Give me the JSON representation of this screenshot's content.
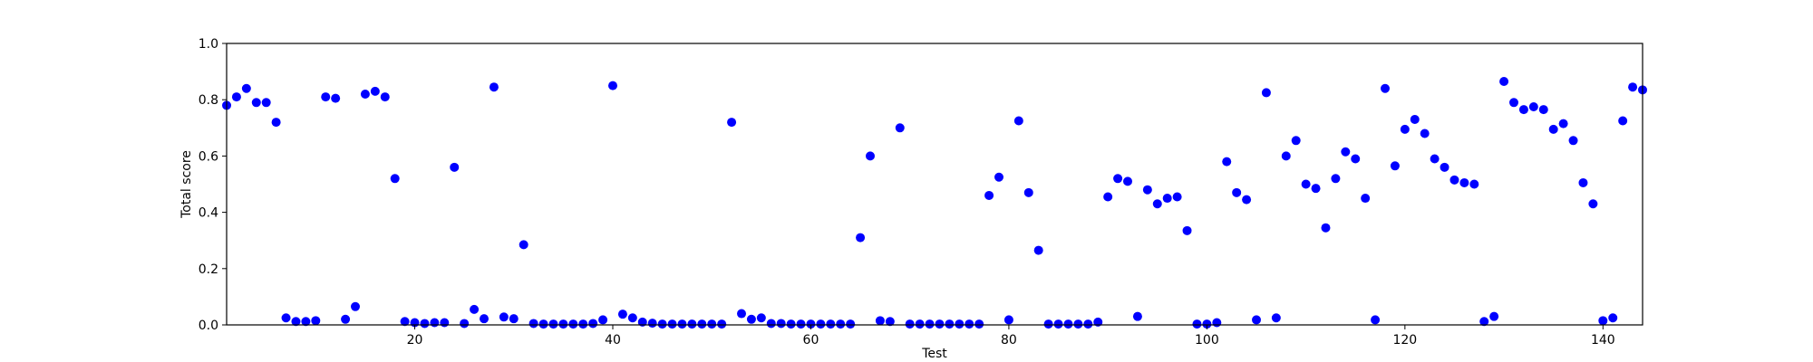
{
  "chart_data": {
    "type": "scatter",
    "title": "",
    "xlabel": "Test",
    "ylabel": "Total score",
    "xlim": [
      1,
      144
    ],
    "ylim": [
      0,
      1.0
    ],
    "xticks": [
      20,
      40,
      60,
      80,
      100,
      120,
      140
    ],
    "xtick_labels": [
      "20",
      "40",
      "60",
      "80",
      "100",
      "120",
      "140"
    ],
    "yticks": [
      0,
      0.2,
      0.4,
      0.6,
      0.8,
      1.0
    ],
    "ytick_labels": [
      "0.0",
      "0.2",
      "0.4",
      "0.6",
      "0.8",
      "1.0"
    ],
    "grid": false,
    "marker_color": "#0000ff",
    "series": [
      {
        "points": [
          [
            1,
            0.78
          ],
          [
            2,
            0.81
          ],
          [
            3,
            0.84
          ],
          [
            4,
            0.79
          ],
          [
            5,
            0.79
          ],
          [
            6,
            0.72
          ],
          [
            7,
            0.025
          ],
          [
            8,
            0.012
          ],
          [
            9,
            0.012
          ],
          [
            10,
            0.015
          ],
          [
            11,
            0.81
          ],
          [
            12,
            0.805
          ],
          [
            13,
            0.02
          ],
          [
            14,
            0.065
          ],
          [
            15,
            0.82
          ],
          [
            16,
            0.83
          ],
          [
            17,
            0.81
          ],
          [
            18,
            0.52
          ],
          [
            19,
            0.012
          ],
          [
            20,
            0.008
          ],
          [
            21,
            0.005
          ],
          [
            22,
            0.008
          ],
          [
            23,
            0.008
          ],
          [
            24,
            0.56
          ],
          [
            25,
            0.005
          ],
          [
            26,
            0.055
          ],
          [
            27,
            0.022
          ],
          [
            28,
            0.845
          ],
          [
            29,
            0.028
          ],
          [
            30,
            0.022
          ],
          [
            31,
            0.285
          ],
          [
            32,
            0.005
          ],
          [
            33,
            0.003
          ],
          [
            34,
            0.003
          ],
          [
            35,
            0.003
          ],
          [
            36,
            0.003
          ],
          [
            37,
            0.003
          ],
          [
            38,
            0.005
          ],
          [
            39,
            0.018
          ],
          [
            40,
            0.85
          ],
          [
            41,
            0.038
          ],
          [
            42,
            0.025
          ],
          [
            43,
            0.01
          ],
          [
            44,
            0.006
          ],
          [
            45,
            0.003
          ],
          [
            46,
            0.003
          ],
          [
            47,
            0.003
          ],
          [
            48,
            0.003
          ],
          [
            49,
            0.003
          ],
          [
            50,
            0.003
          ],
          [
            51,
            0.003
          ],
          [
            52,
            0.72
          ],
          [
            53,
            0.04
          ],
          [
            54,
            0.02
          ],
          [
            55,
            0.025
          ],
          [
            56,
            0.005
          ],
          [
            57,
            0.005
          ],
          [
            58,
            0.003
          ],
          [
            59,
            0.003
          ],
          [
            60,
            0.003
          ],
          [
            61,
            0.003
          ],
          [
            62,
            0.003
          ],
          [
            63,
            0.003
          ],
          [
            64,
            0.003
          ],
          [
            65,
            0.31
          ],
          [
            66,
            0.6
          ],
          [
            67,
            0.015
          ],
          [
            68,
            0.012
          ],
          [
            69,
            0.7
          ],
          [
            70,
            0.003
          ],
          [
            71,
            0.003
          ],
          [
            72,
            0.003
          ],
          [
            73,
            0.003
          ],
          [
            74,
            0.003
          ],
          [
            75,
            0.003
          ],
          [
            76,
            0.003
          ],
          [
            77,
            0.003
          ],
          [
            78,
            0.46
          ],
          [
            79,
            0.525
          ],
          [
            80,
            0.018
          ],
          [
            81,
            0.725
          ],
          [
            82,
            0.47
          ],
          [
            83,
            0.265
          ],
          [
            84,
            0.003
          ],
          [
            85,
            0.003
          ],
          [
            86,
            0.003
          ],
          [
            87,
            0.003
          ],
          [
            88,
            0.003
          ],
          [
            89,
            0.01
          ],
          [
            90,
            0.455
          ],
          [
            91,
            0.52
          ],
          [
            92,
            0.51
          ],
          [
            93,
            0.03
          ],
          [
            94,
            0.48
          ],
          [
            95,
            0.43
          ],
          [
            96,
            0.45
          ],
          [
            97,
            0.455
          ],
          [
            98,
            0.335
          ],
          [
            99,
            0.003
          ],
          [
            100,
            0.003
          ],
          [
            101,
            0.008
          ],
          [
            102,
            0.58
          ],
          [
            103,
            0.47
          ],
          [
            104,
            0.445
          ],
          [
            105,
            0.018
          ],
          [
            106,
            0.825
          ],
          [
            107,
            0.025
          ],
          [
            108,
            0.6
          ],
          [
            109,
            0.655
          ],
          [
            110,
            0.5
          ],
          [
            111,
            0.485
          ],
          [
            112,
            0.345
          ],
          [
            113,
            0.52
          ],
          [
            114,
            0.615
          ],
          [
            115,
            0.59
          ],
          [
            116,
            0.45
          ],
          [
            117,
            0.018
          ],
          [
            118,
            0.84
          ],
          [
            119,
            0.565
          ],
          [
            120,
            0.695
          ],
          [
            121,
            0.73
          ],
          [
            122,
            0.68
          ],
          [
            123,
            0.59
          ],
          [
            124,
            0.56
          ],
          [
            125,
            0.515
          ],
          [
            126,
            0.505
          ],
          [
            127,
            0.5
          ],
          [
            128,
            0.012
          ],
          [
            129,
            0.03
          ],
          [
            130,
            0.865
          ],
          [
            131,
            0.79
          ],
          [
            132,
            0.765
          ],
          [
            133,
            0.775
          ],
          [
            134,
            0.765
          ],
          [
            135,
            0.695
          ],
          [
            136,
            0.715
          ],
          [
            137,
            0.655
          ],
          [
            138,
            0.505
          ],
          [
            139,
            0.43
          ],
          [
            140,
            0.015
          ],
          [
            141,
            0.025
          ],
          [
            142,
            0.725
          ],
          [
            143,
            0.845
          ],
          [
            144,
            0.835
          ]
        ]
      }
    ]
  }
}
